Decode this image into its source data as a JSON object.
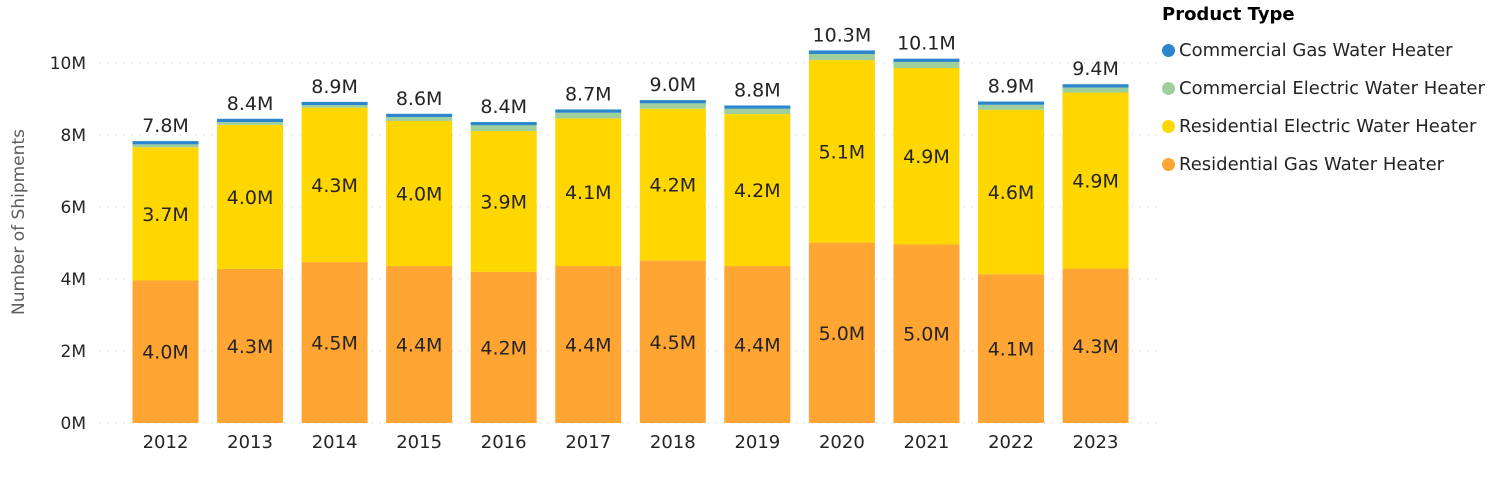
{
  "chart_data": {
    "type": "bar",
    "stacked": true,
    "title": "",
    "xlabel": "",
    "ylabel": "Number of Shipments",
    "ylim": [
      0,
      10000000
    ],
    "yticks": [
      0,
      2000000,
      4000000,
      6000000,
      8000000,
      10000000
    ],
    "ytick_labels": [
      "0M",
      "2M",
      "4M",
      "6M",
      "8M",
      "10M"
    ],
    "grid": true,
    "legend_position": "top-right",
    "legend_title": "Product Type",
    "categories": [
      "2012",
      "2013",
      "2014",
      "2015",
      "2016",
      "2017",
      "2018",
      "2019",
      "2020",
      "2021",
      "2022",
      "2023"
    ],
    "series": [
      {
        "name": "Residential Gas Water Heater",
        "color": "#FFA533",
        "values": [
          3960000,
          4280000,
          4470000,
          4360000,
          4200000,
          4360000,
          4510000,
          4360000,
          5010000,
          4960000,
          4130000,
          4290000
        ],
        "labels": [
          "4.0M",
          "4.3M",
          "4.5M",
          "4.4M",
          "4.2M",
          "4.4M",
          "4.5M",
          "4.4M",
          "5.0M",
          "5.0M",
          "4.1M",
          "4.3M"
        ]
      },
      {
        "name": "Residential Electric Water Heater",
        "color": "#FFD700",
        "values": [
          3700000,
          4000000,
          4290000,
          4030000,
          3910000,
          4100000,
          4220000,
          4220000,
          5070000,
          4900000,
          4570000,
          4890000
        ],
        "labels": [
          "3.7M",
          "4.0M",
          "4.3M",
          "4.0M",
          "3.9M",
          "4.1M",
          "4.2M",
          "4.2M",
          "5.1M",
          "4.9M",
          "4.6M",
          "4.9M"
        ]
      },
      {
        "name": "Commercial Electric Water Heater",
        "color": "#9FCF9D",
        "values": [
          80000,
          80000,
          70000,
          110000,
          160000,
          160000,
          150000,
          150000,
          170000,
          170000,
          140000,
          140000
        ],
        "labels": [
          "",
          "",
          "",
          "",
          "",
          "",
          "",
          "",
          "",
          "",
          "",
          ""
        ]
      },
      {
        "name": "Commercial Gas Water Heater",
        "color": "#2B86CC",
        "values": [
          90000,
          90000,
          90000,
          90000,
          90000,
          90000,
          90000,
          90000,
          100000,
          90000,
          90000,
          90000
        ],
        "labels": [
          "",
          "",
          "",
          "",
          "",
          "",
          "",
          "",
          "",
          "",
          "",
          ""
        ]
      }
    ],
    "totals": [
      7830000,
      8450000,
      8920000,
      8590000,
      8360000,
      8710000,
      8970000,
      8820000,
      10350000,
      10120000,
      8930000,
      9410000
    ],
    "total_labels": [
      "7.8M",
      "8.4M",
      "8.9M",
      "8.6M",
      "8.4M",
      "8.7M",
      "9.0M",
      "8.8M",
      "10.3M",
      "10.1M",
      "8.9M",
      "9.4M"
    ]
  },
  "legend": {
    "title": "Product Type",
    "items": [
      {
        "label": "Commercial Gas Water Heater",
        "color": "#2B86CC"
      },
      {
        "label": "Commercial Electric Water Heater",
        "color": "#9FCF9D"
      },
      {
        "label": "Residential Electric Water Heater",
        "color": "#FFD700"
      },
      {
        "label": "Residential Gas Water Heater",
        "color": "#FFA533"
      }
    ]
  }
}
